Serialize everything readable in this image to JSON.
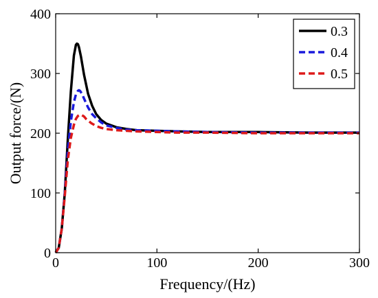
{
  "chart_data": {
    "type": "line",
    "xlabel": "Frequency/(Hz)",
    "ylabel": "Output force/(N)",
    "xlim": [
      0,
      300
    ],
    "ylim": [
      0,
      400
    ],
    "xticks": [
      "0",
      "100",
      "200",
      "300"
    ],
    "yticks": [
      "0",
      "100",
      "200",
      "300",
      "400"
    ],
    "grid": false,
    "legend_position": "top-right",
    "series": [
      {
        "name": "0.3",
        "color": "#000000",
        "dash": "solid",
        "x": [
          0,
          3,
          6,
          9,
          12,
          15,
          18,
          20,
          21,
          22,
          23,
          25,
          28,
          32,
          36,
          40,
          45,
          50,
          60,
          70,
          80,
          100,
          120,
          150,
          200,
          250,
          300
        ],
        "y": [
          0,
          8,
          40,
          100,
          190,
          270,
          330,
          348,
          350,
          349,
          344,
          328,
          298,
          266,
          246,
          232,
          222,
          216,
          210,
          207,
          205,
          204,
          203,
          202,
          202,
          201,
          201
        ]
      },
      {
        "name": "0.4",
        "color": "#1a1adc",
        "dash": "dashed",
        "x": [
          0,
          3,
          6,
          9,
          12,
          15,
          18,
          20,
          22,
          23,
          24,
          26,
          28,
          32,
          36,
          40,
          45,
          50,
          60,
          70,
          80,
          100,
          120,
          150,
          200,
          250,
          300
        ],
        "y": [
          0,
          8,
          40,
          100,
          170,
          220,
          252,
          265,
          271,
          272,
          271,
          266,
          258,
          243,
          232,
          225,
          218,
          213,
          209,
          206,
          205,
          204,
          203,
          202,
          201,
          201,
          201
        ]
      },
      {
        "name": "0.5",
        "color": "#dd1a1a",
        "dash": "dashed",
        "x": [
          0,
          3,
          6,
          9,
          12,
          15,
          18,
          20,
          22,
          24,
          26,
          28,
          30,
          35,
          40,
          45,
          50,
          60,
          70,
          80,
          100,
          120,
          150,
          200,
          250,
          300
        ],
        "y": [
          0,
          8,
          40,
          95,
          155,
          192,
          214,
          224,
          229,
          231,
          230,
          228,
          224,
          217,
          212,
          209,
          207,
          205,
          204,
          203,
          202,
          201,
          201,
          200,
          200,
          200
        ]
      }
    ]
  }
}
